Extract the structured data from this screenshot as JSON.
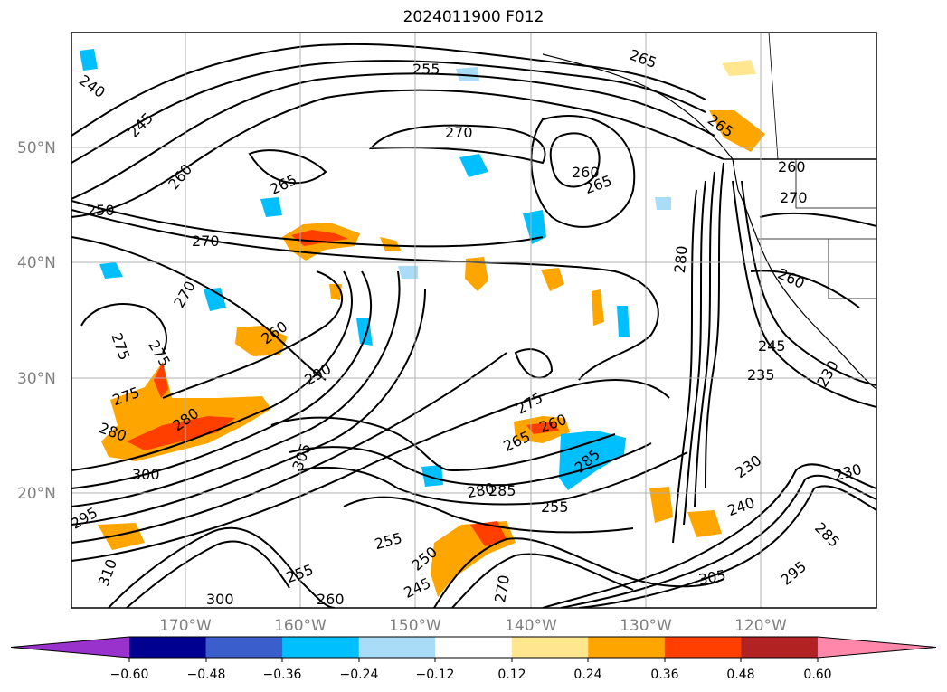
{
  "title": "2024011900 F012",
  "map": {
    "lat_labels": [
      "50°N",
      "40°N",
      "30°N",
      "20°N"
    ],
    "lon_labels": [
      "170°W",
      "160°W",
      "150°W",
      "140°W",
      "130°W",
      "120°W"
    ],
    "contour_color": "#000000",
    "land_line_color": "#000000",
    "gridline_color": "#b0b0b0",
    "contour_labels": [
      {
        "text": "240"
      },
      {
        "text": "245"
      },
      {
        "text": "250"
      },
      {
        "text": "255"
      },
      {
        "text": "260"
      },
      {
        "text": "265"
      },
      {
        "text": "270"
      },
      {
        "text": "270"
      },
      {
        "text": "260"
      },
      {
        "text": "265"
      },
      {
        "text": "270"
      },
      {
        "text": "265"
      },
      {
        "text": "260"
      },
      {
        "text": "270"
      },
      {
        "text": "280"
      },
      {
        "text": "260"
      },
      {
        "text": "275"
      },
      {
        "text": "275"
      },
      {
        "text": "275"
      },
      {
        "text": "280"
      },
      {
        "text": "280"
      },
      {
        "text": "290"
      },
      {
        "text": "305"
      },
      {
        "text": "300"
      },
      {
        "text": "295"
      },
      {
        "text": "275"
      },
      {
        "text": "265"
      },
      {
        "text": "260"
      },
      {
        "text": "285"
      },
      {
        "text": "285"
      },
      {
        "text": "255"
      },
      {
        "text": "280"
      },
      {
        "text": "255"
      },
      {
        "text": "250"
      },
      {
        "text": "245"
      },
      {
        "text": "260"
      },
      {
        "text": "230"
      },
      {
        "text": "230"
      },
      {
        "text": "240"
      },
      {
        "text": "305"
      },
      {
        "text": "295"
      },
      {
        "text": "285"
      },
      {
        "text": "300"
      },
      {
        "text": "310"
      },
      {
        "text": "255"
      },
      {
        "text": "265"
      },
      {
        "text": "260"
      },
      {
        "text": "270"
      },
      {
        "text": "245"
      },
      {
        "text": "235"
      },
      {
        "text": "230"
      }
    ],
    "fill_patches": [
      {
        "color": "#fe6f09",
        "value": 0.4
      },
      {
        "color": "#ffa500",
        "value": 0.3
      },
      {
        "color": "#00bfff",
        "value": -0.3
      },
      {
        "color": "#a9dcf7",
        "value": -0.2
      }
    ]
  },
  "colorbar": {
    "tick_labels": [
      "−0.60",
      "−0.48",
      "−0.36",
      "−0.24",
      "−0.12",
      "0.12",
      "0.24",
      "0.36",
      "0.48",
      "0.60"
    ],
    "bins": [
      {
        "color": "#9932cc"
      },
      {
        "color": "#000090"
      },
      {
        "color": "#3a5fcd"
      },
      {
        "color": "#00bfff"
      },
      {
        "color": "#a9dcf7"
      },
      {
        "color": "#ffffff"
      },
      {
        "color": "#ffe68f"
      },
      {
        "color": "#ffa500"
      },
      {
        "color": "#ff3f00"
      },
      {
        "color": "#b22222"
      },
      {
        "color": "#ff88aa"
      }
    ]
  }
}
